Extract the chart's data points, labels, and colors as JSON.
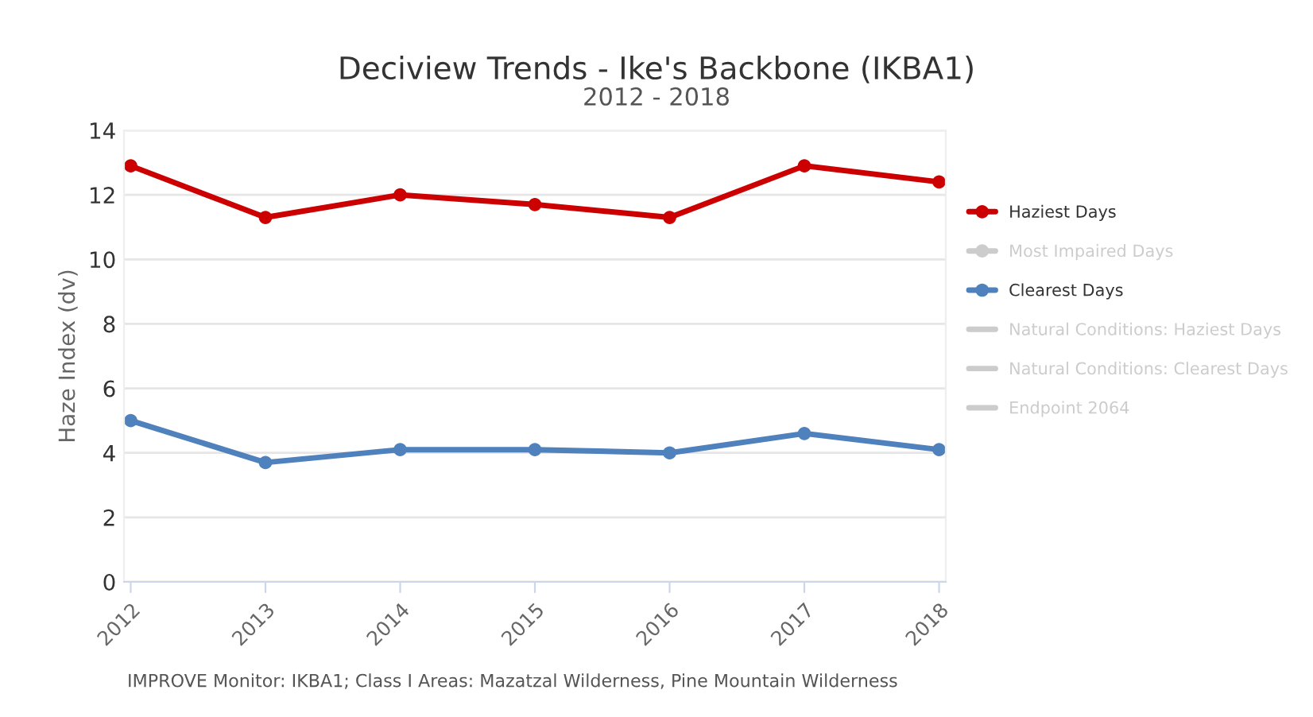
{
  "chart_data": {
    "type": "line",
    "title": "Deciview Trends - Ike's Backbone (IKBA1)",
    "subtitle": "2012 - 2018",
    "ylabel": "Haze Index (dv)",
    "categories": [
      "2012",
      "2013",
      "2014",
      "2015",
      "2016",
      "2017",
      "2018"
    ],
    "series": [
      {
        "name": "Haziest Days",
        "color": "#cc0000",
        "marker": "circle",
        "values": [
          12.9,
          11.3,
          12.0,
          11.7,
          11.3,
          12.9,
          12.4
        ]
      },
      {
        "name": "Most Impaired Days",
        "color": "#cccccc",
        "marker": "circle",
        "values": [
          null,
          null,
          null,
          null,
          null,
          null,
          null
        ]
      },
      {
        "name": "Clearest Days",
        "color": "#4f81bd",
        "marker": "circle",
        "values": [
          5.0,
          3.7,
          4.1,
          4.1,
          4.0,
          4.6,
          4.1
        ]
      },
      {
        "name": "Natural Conditions: Haziest Days",
        "color": "#cccccc",
        "marker": "none",
        "values": [
          null,
          null,
          null,
          null,
          null,
          null,
          null
        ]
      },
      {
        "name": "Natural Conditions: Clearest Days",
        "color": "#cccccc",
        "marker": "none",
        "values": [
          null,
          null,
          null,
          null,
          null,
          null,
          null
        ]
      },
      {
        "name": "Endpoint 2064",
        "color": "#cccccc",
        "marker": "none",
        "values": [
          null,
          null,
          null,
          null,
          null,
          null,
          null
        ]
      }
    ],
    "ylim": [
      0,
      14
    ],
    "yticks": [
      0,
      2,
      4,
      6,
      8,
      10,
      12,
      14
    ],
    "grid": "y",
    "legend": "right",
    "line_style": "solid",
    "annotations": [
      "IMPROVE Monitor: IKBA1; Class I Areas: Mazatzal Wilderness, Pine Mountain Wilderness"
    ]
  }
}
